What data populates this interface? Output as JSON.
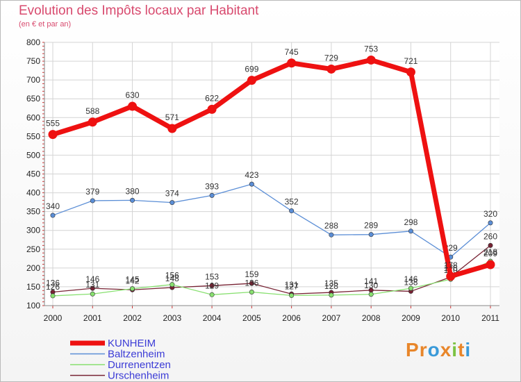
{
  "chart_data": {
    "type": "line",
    "title": "Evolution des Impôts locaux par Habitant",
    "subtitle": "(en € et par an)",
    "categories": [
      "2000",
      "2001",
      "2002",
      "2003",
      "2004",
      "2005",
      "2006",
      "2007",
      "2008",
      "2009",
      "2010",
      "2011"
    ],
    "ylim": [
      100,
      800
    ],
    "yticks": [
      100,
      150,
      200,
      250,
      300,
      350,
      400,
      450,
      500,
      550,
      600,
      650,
      700,
      750,
      800
    ],
    "grid": true,
    "legend_position": "bottom-left",
    "series": [
      {
        "name": "KUNHEIM",
        "color": "#ee1111",
        "values": [
          555,
          588,
          630,
          571,
          622,
          699,
          745,
          729,
          753,
          721,
          178,
          209
        ]
      },
      {
        "name": "Baltzenheim",
        "color": "#5b8ed6",
        "values": [
          340,
          379,
          380,
          374,
          393,
          423,
          352,
          288,
          289,
          298,
          229,
          320
        ]
      },
      {
        "name": "Durrenentzen",
        "color": "#88e070",
        "values": [
          126,
          131,
          145,
          156,
          129,
          136,
          127,
          128,
          130,
          146,
          170,
          218
        ]
      },
      {
        "name": "Urschenheim",
        "color": "#772233",
        "values": [
          136,
          146,
          142,
          148,
          153,
          159,
          131,
          135,
          141,
          138,
          176,
          260
        ]
      }
    ]
  },
  "logo": {
    "text": "Proxiti",
    "colors": [
      "#e8862a",
      "#e8862a",
      "#3a9ad9",
      "#e8862a",
      "#7cc242",
      "#e8862a",
      "#3a9ad9"
    ]
  }
}
